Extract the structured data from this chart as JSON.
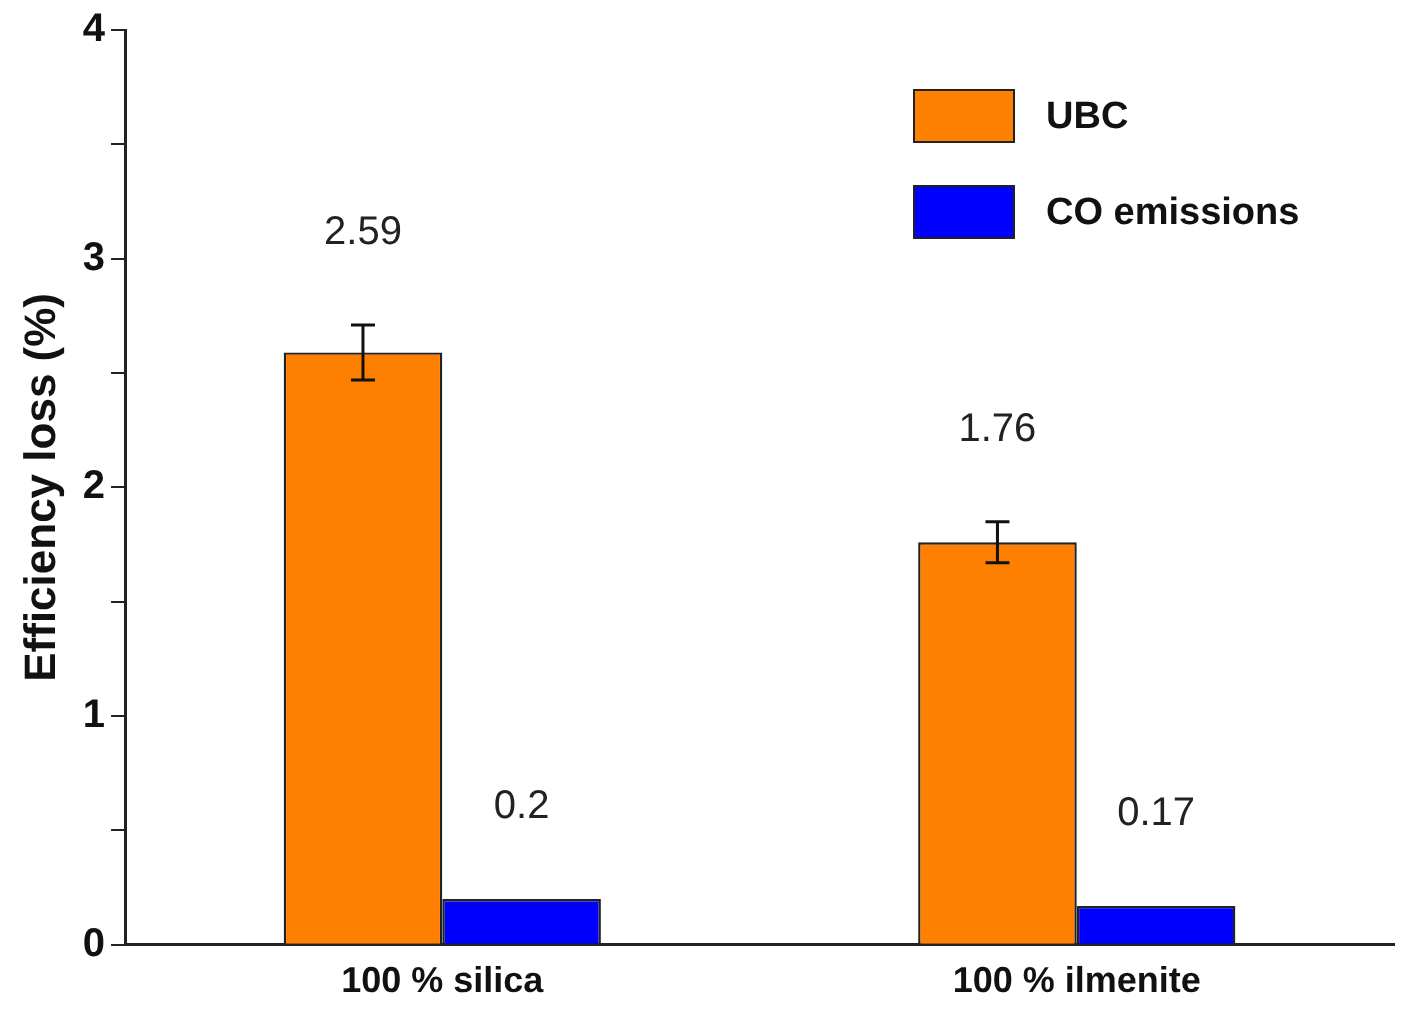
{
  "chart_data": {
    "type": "bar",
    "ylabel": "Efficiency loss (%)",
    "categories": [
      "100 % silica",
      "100 % ilmenite"
    ],
    "series": [
      {
        "name": "UBC",
        "color": "#ff8000",
        "values": [
          2.59,
          1.76
        ],
        "errors": [
          0.12,
          0.09
        ]
      },
      {
        "name": "CO emissions",
        "color": "#0000ff",
        "values": [
          0.2,
          0.17
        ]
      }
    ],
    "ylim": [
      0,
      4
    ],
    "yticks": [
      0,
      {
        "value": 0.5,
        "label": null
      },
      1,
      {
        "value": 1.5,
        "label": null
      },
      2,
      {
        "value": 2.5,
        "label": null
      },
      3,
      {
        "value": 3.5,
        "label": null
      },
      4
    ],
    "data_labels": true,
    "legend": "top right",
    "grid": false
  }
}
